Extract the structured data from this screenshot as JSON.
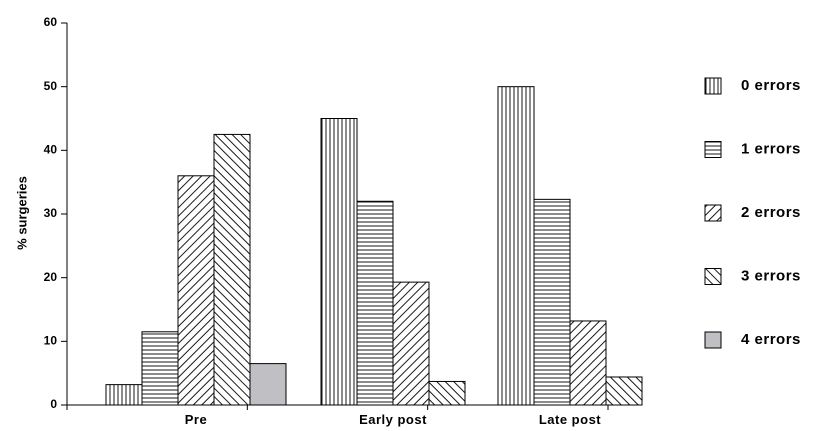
{
  "chart_data": {
    "type": "bar",
    "ylabel": "% surgeries",
    "xlabel": "",
    "title": "",
    "ylim": [
      0,
      60
    ],
    "yticks": [
      0,
      10,
      20,
      30,
      40,
      50,
      60
    ],
    "categories": [
      "Pre",
      "Early post",
      "Late post"
    ],
    "legend_position": "right",
    "grid": false,
    "series": [
      {
        "name": "0 errors",
        "pattern": "vertical-lines",
        "values": [
          3.2,
          45.0,
          50.0
        ]
      },
      {
        "name": "1 errors",
        "pattern": "horizontal-lines",
        "values": [
          11.5,
          32.0,
          32.3
        ]
      },
      {
        "name": "2 errors",
        "pattern": "forward-diagonal",
        "values": [
          36.0,
          19.3,
          13.2
        ]
      },
      {
        "name": "3 errors",
        "pattern": "back-diagonal",
        "values": [
          42.5,
          3.7,
          4.4
        ]
      },
      {
        "name": "4 errors",
        "pattern": "solid-gray",
        "color": "#c0c0c4",
        "values": [
          6.5,
          null,
          null
        ]
      }
    ]
  }
}
